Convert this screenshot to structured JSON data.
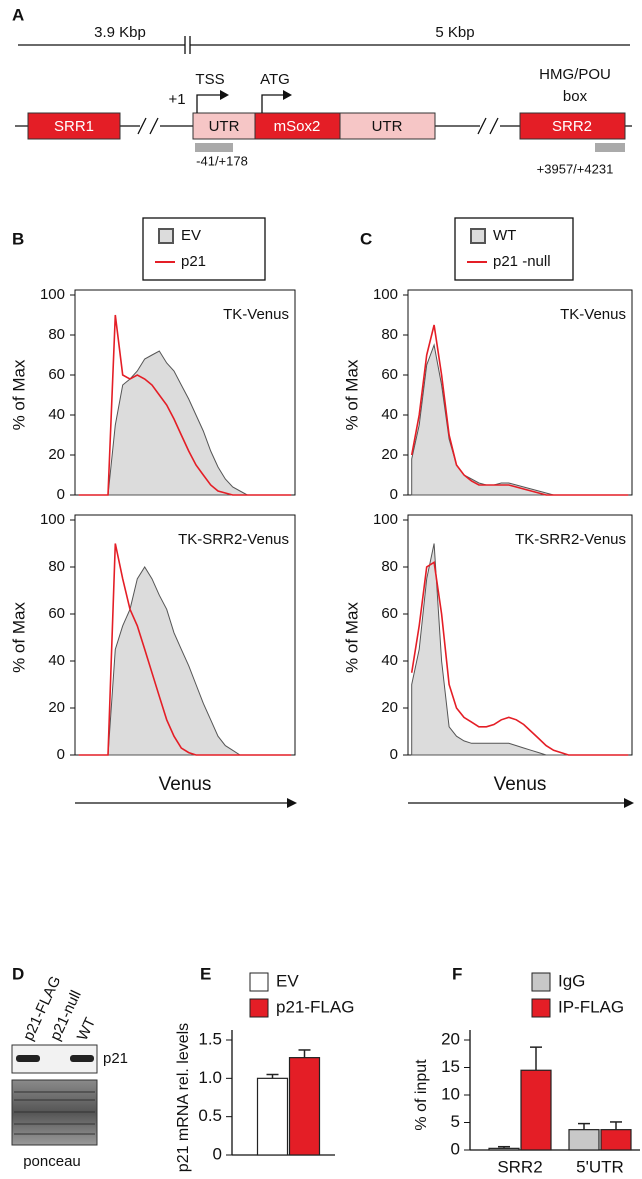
{
  "diagram": {
    "label": "A",
    "spans": [
      "3.9 Kbp",
      "5 Kbp"
    ],
    "elements": {
      "srr1": "SRR1",
      "utr5": "UTR",
      "cds": "mSox2",
      "utr3": "UTR",
      "srr2": "SRR2",
      "start": "+1",
      "tss": "TSS",
      "atg": "ATG",
      "motif": [
        "HMG/POU",
        "box"
      ]
    },
    "primers": [
      "-41/+178",
      "+3957/+4231"
    ]
  },
  "blot": {
    "label": "D",
    "lanes": [
      "p21-FLAG",
      "p21-null",
      "WT"
    ],
    "band": "p21",
    "stain": "ponceau"
  },
  "chart_data": [
    {
      "type": "area",
      "label": "B",
      "xlabel": "Venus",
      "ylabel": "% of Max",
      "ylim": [
        0,
        100
      ],
      "yticks": [
        0,
        20,
        40,
        60,
        80,
        100
      ],
      "categories": [
        null,
        null,
        null,
        null,
        null,
        null,
        null,
        null,
        null,
        null,
        null,
        null,
        null,
        null,
        null,
        null,
        null,
        null,
        null,
        null,
        null,
        null,
        null,
        null,
        null,
        null,
        null,
        null,
        null,
        null
      ],
      "plots": [
        {
          "annotation": "TK-Venus",
          "series": [
            {
              "name": "EV",
              "color": "#555555",
              "fill": "#dcdcdc",
              "values": [
                0,
                0,
                0,
                0,
                0,
                35,
                55,
                58,
                62,
                68,
                70,
                72,
                66,
                62,
                55,
                48,
                40,
                32,
                22,
                14,
                8,
                4,
                2,
                0,
                0,
                0,
                0,
                0,
                0,
                0
              ]
            },
            {
              "name": "p21",
              "color": "#e41e26",
              "values": [
                0,
                0,
                0,
                0,
                0,
                90,
                60,
                58,
                60,
                58,
                55,
                50,
                45,
                38,
                30,
                22,
                15,
                10,
                5,
                2,
                1,
                0,
                0,
                0,
                0,
                0,
                0,
                0,
                0,
                0
              ]
            }
          ]
        },
        {
          "annotation": "TK-SRR2-Venus",
          "series": [
            {
              "color": "#555555",
              "fill": "#dcdcdc",
              "values": [
                0,
                0,
                0,
                0,
                0,
                45,
                55,
                62,
                75,
                80,
                75,
                68,
                62,
                52,
                45,
                38,
                30,
                22,
                15,
                8,
                4,
                2,
                0,
                0,
                0,
                0,
                0,
                0,
                0,
                0
              ]
            },
            {
              "color": "#e41e26",
              "values": [
                0,
                0,
                0,
                0,
                0,
                90,
                75,
                62,
                55,
                45,
                35,
                25,
                15,
                8,
                3,
                1,
                0,
                0,
                0,
                0,
                0,
                0,
                0,
                0,
                0,
                0,
                0,
                0,
                0,
                0
              ]
            }
          ]
        }
      ]
    },
    {
      "type": "area",
      "label": "C",
      "xlabel": "Venus",
      "ylabel": "% of Max",
      "ylim": [
        0,
        100
      ],
      "yticks": [
        0,
        20,
        40,
        60,
        80,
        100
      ],
      "categories": [
        null,
        null,
        null,
        null,
        null,
        null,
        null,
        null,
        null,
        null,
        null,
        null,
        null,
        null,
        null,
        null,
        null,
        null,
        null,
        null,
        null,
        null,
        null,
        null,
        null,
        null,
        null,
        null,
        null,
        null
      ],
      "plots": [
        {
          "annotation": "TK-Venus",
          "series": [
            {
              "name": "WT",
              "color": "#555555",
              "fill": "#dcdcdc",
              "values": [
                18,
                35,
                65,
                75,
                55,
                28,
                15,
                10,
                8,
                6,
                5,
                5,
                6,
                6,
                5,
                4,
                3,
                2,
                1,
                0,
                0,
                0,
                0,
                0,
                0,
                0,
                0,
                0,
                0,
                0
              ]
            },
            {
              "name": "p21 -null",
              "color": "#e41e26",
              "values": [
                20,
                40,
                70,
                85,
                60,
                30,
                15,
                10,
                7,
                5,
                5,
                5,
                5,
                5,
                4,
                3,
                2,
                1,
                0,
                0,
                0,
                0,
                0,
                0,
                0,
                0,
                0,
                0,
                0,
                0
              ]
            }
          ]
        },
        {
          "annotation": "TK-SRR2-Venus",
          "series": [
            {
              "color": "#555555",
              "fill": "#dcdcdc",
              "values": [
                30,
                45,
                75,
                90,
                40,
                12,
                8,
                6,
                5,
                5,
                5,
                5,
                5,
                5,
                4,
                3,
                2,
                1,
                0,
                0,
                0,
                0,
                0,
                0,
                0,
                0,
                0,
                0,
                0,
                0
              ]
            },
            {
              "color": "#e41e26",
              "values": [
                35,
                55,
                80,
                82,
                60,
                30,
                20,
                16,
                14,
                12,
                12,
                13,
                15,
                16,
                15,
                13,
                10,
                7,
                4,
                2,
                1,
                0,
                0,
                0,
                0,
                0,
                0,
                0,
                0,
                0
              ]
            }
          ]
        }
      ]
    },
    {
      "type": "bar",
      "label": "E",
      "ylabel": "p21 mRNA rel. levels",
      "ylim": [
        0,
        1.5
      ],
      "yticks": [
        0,
        0.5,
        {
          "value": 1,
          "label": "1.0"
        },
        1.5
      ],
      "categories": [
        null
      ],
      "series": [
        {
          "name": "EV",
          "color": "#ffffff",
          "values": [
            1.0
          ],
          "errors": [
            0.05
          ]
        },
        {
          "name": "p21-FLAG",
          "color": "#e41e26",
          "values": [
            1.27
          ],
          "errors": [
            0.1
          ]
        }
      ]
    },
    {
      "type": "bar",
      "label": "F",
      "ylabel": "% of input",
      "ylim": [
        0,
        20
      ],
      "yticks": [
        0,
        5,
        10,
        15,
        20
      ],
      "categories": [
        "SRR2",
        "5'UTR"
      ],
      "series": [
        {
          "name": "IgG",
          "color": "#c8c8c8",
          "values": [
            0.3,
            3.7
          ],
          "errors": [
            0.3,
            1.1
          ]
        },
        {
          "name": "IP-FLAG",
          "color": "#e41e26",
          "values": [
            14.5,
            3.7
          ],
          "errors": [
            4.2,
            1.4
          ]
        }
      ]
    }
  ]
}
